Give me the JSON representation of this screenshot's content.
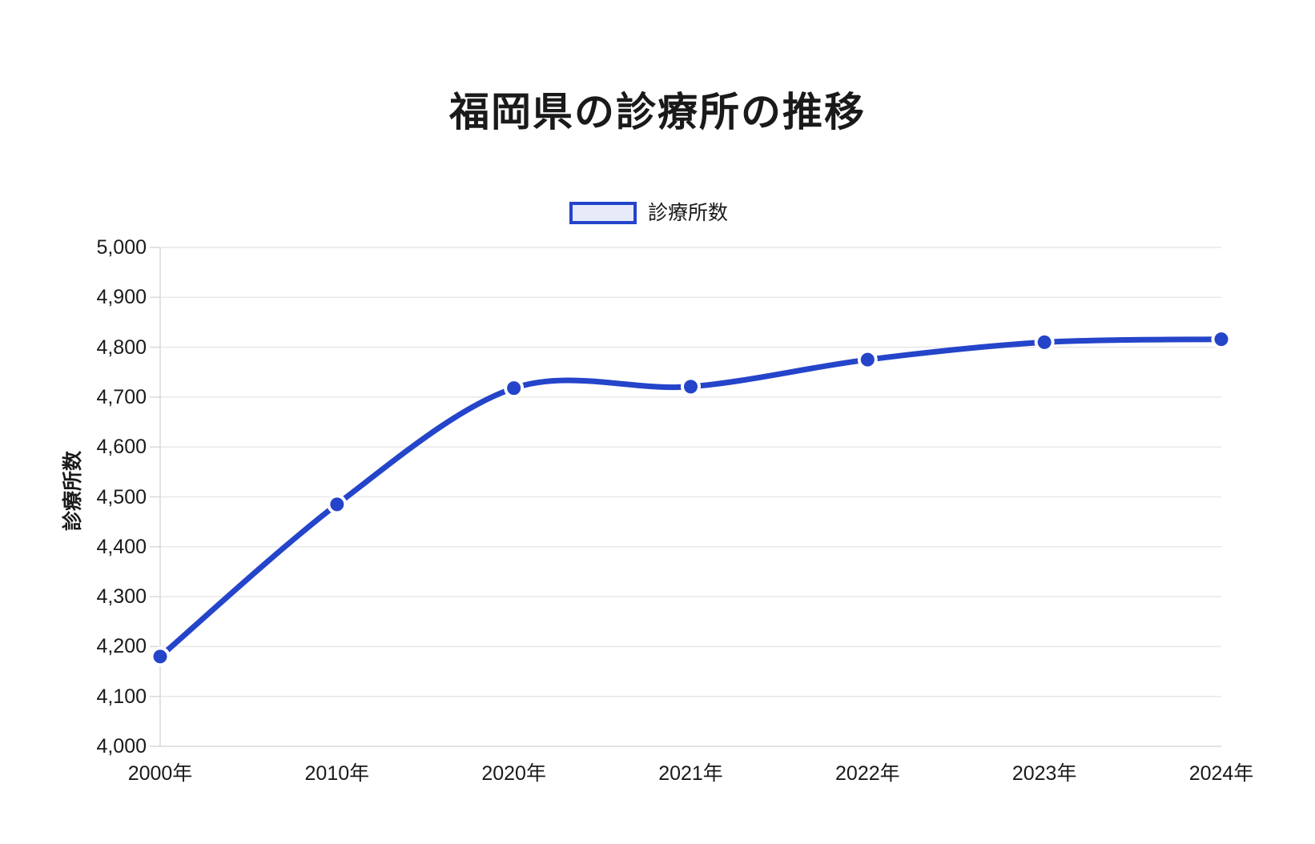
{
  "title": "福岡県の診療所の推移",
  "legend": {
    "label": "診療所数",
    "box_fill": "#E7EAF9",
    "box_border": "#2444CA"
  },
  "y_axis": {
    "title": "診療所数",
    "tick_labels": [
      "5,000",
      "4,900",
      "4,800",
      "4,700",
      "4,600",
      "4,500",
      "4,400",
      "4,300",
      "4,200",
      "4,100",
      "4,000"
    ]
  },
  "x_axis": {
    "tick_labels": [
      "2000年",
      "2010年",
      "2020年",
      "2021年",
      "2022年",
      "2023年",
      "2024年"
    ]
  },
  "chart_data": {
    "type": "line",
    "title": "福岡県の診療所の推移",
    "categories": [
      "2000年",
      "2010年",
      "2020年",
      "2021年",
      "2022年",
      "2023年",
      "2024年"
    ],
    "series": [
      {
        "name": "診療所数",
        "values": [
          4180,
          4485,
          4718,
          4721,
          4775,
          4810,
          4816
        ]
      }
    ],
    "xlabel": "",
    "ylabel": "診療所数",
    "ylim": [
      4000,
      5000
    ],
    "y_tick_step": 100,
    "grid": "horizontal",
    "legend_position": "top",
    "line_color": "#2444CA",
    "smooth": true
  },
  "colors": {
    "gridline": "#E8E8E8",
    "axis": "#D8D8D8",
    "text": "#1a1a1a",
    "background": "#ffffff"
  }
}
